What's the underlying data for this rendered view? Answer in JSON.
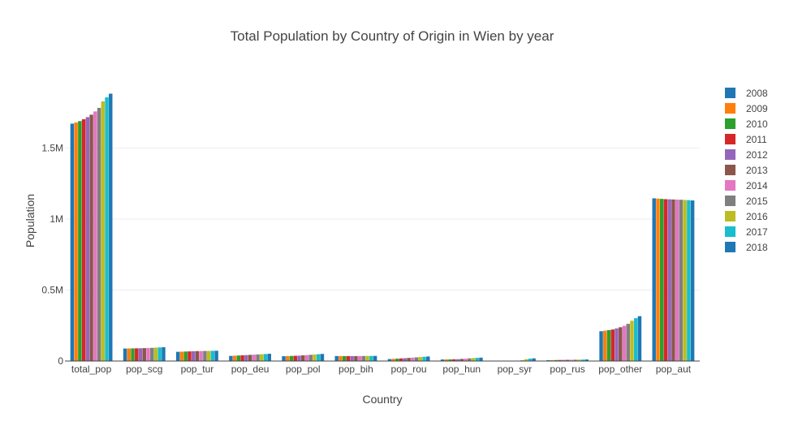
{
  "chart_data": {
    "type": "bar",
    "title": "Total Population by Country of Origin in Wien by year",
    "xlabel": "Country",
    "ylabel": "Population",
    "categories": [
      "total_pop",
      "pop_scg",
      "pop_tur",
      "pop_deu",
      "pop_pol",
      "pop_bih",
      "pop_rou",
      "pop_hun",
      "pop_syr",
      "pop_rus",
      "pop_other",
      "pop_aut"
    ],
    "ylim": [
      0,
      2000000
    ],
    "yticks": [
      0,
      500000,
      1000000,
      1500000
    ],
    "ytick_labels": [
      "0",
      "0.5M",
      "1M",
      "1.5M"
    ],
    "grid": true,
    "legend_position": "right",
    "series": [
      {
        "name": "2008",
        "color": "#1f77b4",
        "values": [
          1672000,
          88000,
          65000,
          36000,
          34000,
          35000,
          14000,
          11000,
          2000,
          6000,
          210000,
          1146000
        ]
      },
      {
        "name": "2009",
        "color": "#ff7f0e",
        "values": [
          1680000,
          88500,
          66000,
          37500,
          35000,
          35000,
          15500,
          11500,
          2000,
          6500,
          214000,
          1144000
        ]
      },
      {
        "name": "2010",
        "color": "#2ca02c",
        "values": [
          1690000,
          89000,
          67000,
          39000,
          36000,
          35000,
          17000,
          12000,
          2000,
          7000,
          218000,
          1142000
        ]
      },
      {
        "name": "2011",
        "color": "#d62728",
        "values": [
          1703000,
          89500,
          68000,
          40500,
          37000,
          35000,
          18500,
          12500,
          2000,
          7500,
          222000,
          1140000
        ]
      },
      {
        "name": "2012",
        "color": "#9467bd",
        "values": [
          1718000,
          90000,
          69000,
          42000,
          38000,
          35000,
          20000,
          13000,
          2000,
          8000,
          230000,
          1139000
        ]
      },
      {
        "name": "2013",
        "color": "#8c564b",
        "values": [
          1735000,
          91000,
          70000,
          43500,
          40000,
          35000,
          22000,
          15000,
          2200,
          8500,
          238000,
          1138000
        ]
      },
      {
        "name": "2014",
        "color": "#e377c2",
        "values": [
          1758000,
          92000,
          70500,
          45000,
          42000,
          35000,
          24000,
          17000,
          3000,
          9000,
          248000,
          1137000
        ]
      },
      {
        "name": "2015",
        "color": "#7f7f7f",
        "values": [
          1783000,
          93000,
          71000,
          46500,
          44000,
          35500,
          26000,
          19000,
          5000,
          9500,
          262000,
          1136000
        ]
      },
      {
        "name": "2016",
        "color": "#bcbd22",
        "values": [
          1829000,
          94500,
          71500,
          48000,
          46000,
          36000,
          28000,
          21000,
          13000,
          10000,
          284000,
          1135000
        ]
      },
      {
        "name": "2017",
        "color": "#17becf",
        "values": [
          1857000,
          96000,
          72000,
          49500,
          48000,
          36000,
          30000,
          22500,
          17000,
          10500,
          302000,
          1133000
        ]
      },
      {
        "name": "2018",
        "color": "#1f77b4",
        "values": [
          1883000,
          97500,
          72500,
          51000,
          50000,
          36000,
          32000,
          24000,
          19000,
          11000,
          316000,
          1131000
        ]
      }
    ]
  }
}
